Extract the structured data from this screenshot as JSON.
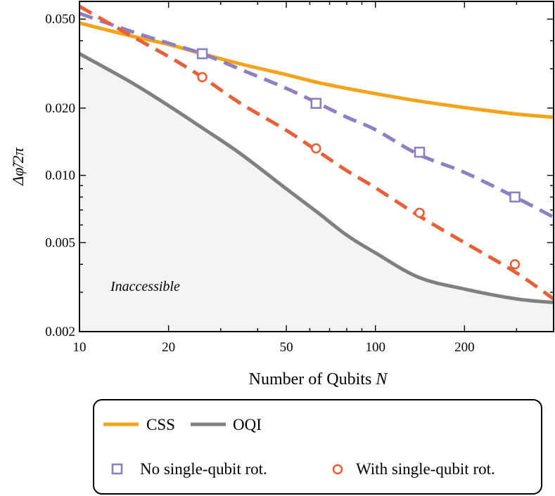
{
  "chart_data": {
    "type": "line",
    "xlabel": "Number of Qubits",
    "xlabel_var": "N",
    "ylabel": "Δφ̃/2π",
    "xscale": "log",
    "yscale": "log",
    "xlim": [
      10,
      400
    ],
    "ylim": [
      0.002,
      0.06
    ],
    "xticks": [
      10,
      20,
      50,
      100,
      200
    ],
    "xtick_labels": [
      "10",
      "20",
      "50",
      "100",
      "200"
    ],
    "yticks": [
      0.002,
      0.005,
      0.01,
      0.02,
      0.05
    ],
    "ytick_labels": [
      "0.002",
      "0.005",
      "0.010",
      "0.020",
      "0.050"
    ],
    "annotation": "Inaccessible",
    "series": [
      {
        "name": "CSS",
        "color": "#f5a31a",
        "style": "solid",
        "x": [
          10,
          15,
          20,
          26,
          35,
          50,
          64,
          80,
          100,
          140,
          200,
          300,
          400
        ],
        "y": [
          0.048,
          0.042,
          0.0385,
          0.035,
          0.0315,
          0.0282,
          0.026,
          0.0245,
          0.0232,
          0.0215,
          0.0201,
          0.0188,
          0.0182
        ]
      },
      {
        "name": "OQI",
        "color": "#808080",
        "style": "solid",
        "x": [
          10,
          15,
          20,
          26,
          35,
          50,
          64,
          80,
          100,
          140,
          200,
          300,
          400
        ],
        "y": [
          0.035,
          0.026,
          0.0205,
          0.0163,
          0.0125,
          0.0087,
          0.0068,
          0.0054,
          0.0045,
          0.0035,
          0.0031,
          0.0028,
          0.0027
        ]
      },
      {
        "name": "No single-qubit rot.",
        "color": "#8f7fc2",
        "style": "dashed",
        "marker": "square",
        "x": [
          10,
          15,
          20,
          26,
          35,
          50,
          64,
          80,
          100,
          140,
          200,
          296,
          400
        ],
        "y": [
          0.053,
          0.044,
          0.039,
          0.035,
          0.0298,
          0.0245,
          0.021,
          0.0182,
          0.016,
          0.0124,
          0.0103,
          0.008,
          0.0065
        ],
        "markers_x": [
          26,
          63,
          141,
          296
        ],
        "markers_y": [
          0.035,
          0.021,
          0.0127,
          0.008
        ]
      },
      {
        "name": "With single-qubit rot.",
        "color": "#e8603a",
        "style": "dashed",
        "marker": "circle",
        "x": [
          10,
          15,
          20,
          26,
          35,
          50,
          64,
          80,
          100,
          140,
          200,
          296,
          400
        ],
        "y": [
          0.057,
          0.042,
          0.034,
          0.0275,
          0.021,
          0.0159,
          0.0128,
          0.0105,
          0.0088,
          0.0066,
          0.005,
          0.0037,
          0.0028
        ],
        "markers_x": [
          26,
          63,
          141,
          296
        ],
        "markers_y": [
          0.0275,
          0.0132,
          0.0068,
          0.004
        ]
      }
    ],
    "legend": {
      "placement": "bottom",
      "entries": [
        "CSS",
        "OQI",
        "No single-qubit rot.",
        "With single-qubit rot."
      ]
    }
  }
}
